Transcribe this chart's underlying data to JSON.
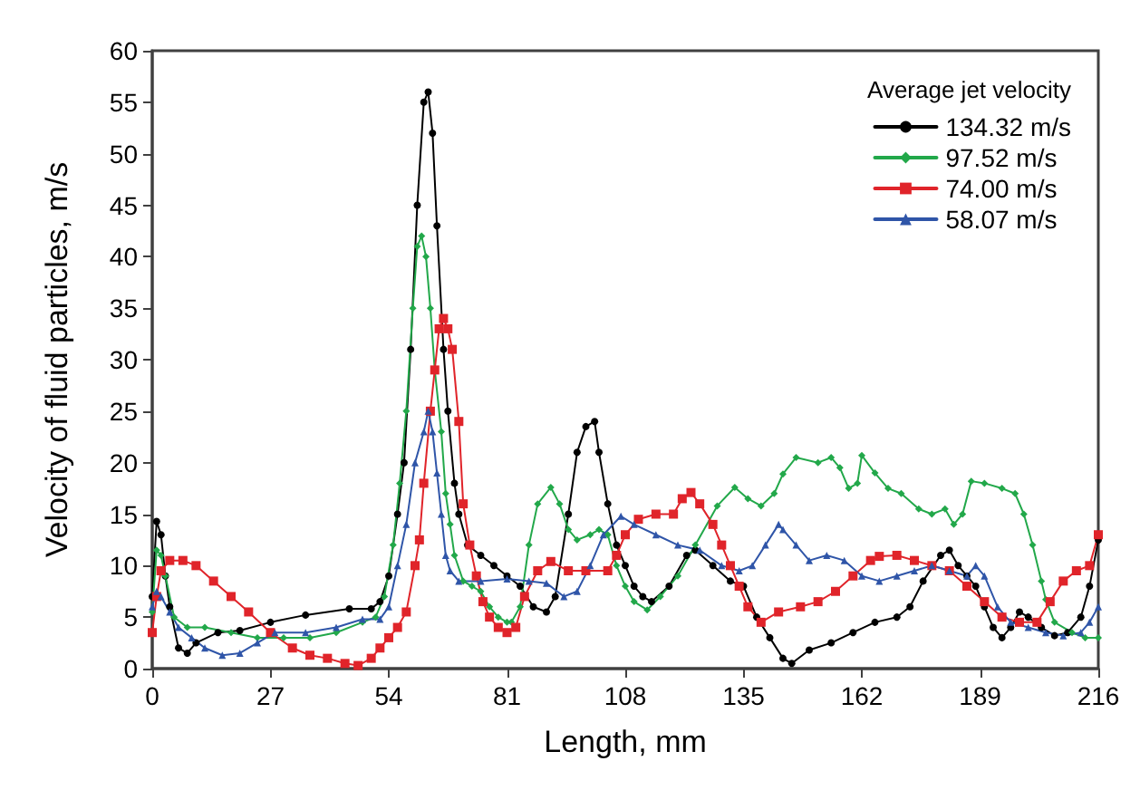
{
  "chart_data": {
    "type": "line",
    "xlabel": "Length, mm",
    "ylabel": "Velocity of fluid particles, m/s",
    "legend_title": "Average jet velocity",
    "legend": "top right",
    "grid": false,
    "xlim": [
      0,
      216
    ],
    "xticks": [
      0,
      27,
      54,
      81,
      108,
      135,
      162,
      189,
      216
    ],
    "ylim": [
      0,
      60
    ],
    "yticks": [
      0,
      5,
      10,
      15,
      20,
      25,
      30,
      35,
      40,
      45,
      50,
      55,
      60
    ],
    "series": [
      {
        "name": "134.32 m/s",
        "color": "#000000",
        "marker": "circle",
        "x": [
          0,
          1,
          2,
          3,
          4,
          6,
          8,
          10,
          15,
          20,
          27,
          35,
          45,
          50,
          52,
          54,
          56,
          57.5,
          59,
          60.5,
          62,
          63,
          64,
          65,
          66.5,
          67.5,
          69,
          70,
          72,
          75,
          78,
          81,
          84,
          87,
          90,
          92,
          95,
          97,
          99,
          101,
          102,
          104,
          106,
          108,
          110,
          112,
          114,
          118,
          122,
          124,
          128,
          132,
          135,
          138,
          141,
          144,
          146,
          150,
          155,
          160,
          165,
          170,
          173,
          176,
          180,
          182,
          184,
          186,
          188,
          190,
          192,
          194,
          196,
          198,
          200,
          203,
          206,
          209,
          212,
          214,
          216
        ],
        "values": [
          7,
          14.3,
          13,
          9,
          6,
          2,
          1.5,
          2.5,
          3.5,
          3.7,
          4.5,
          5.2,
          5.8,
          5.8,
          6.5,
          9,
          15,
          20,
          31,
          45,
          55,
          56,
          52,
          43,
          31,
          25,
          18,
          15,
          12,
          11,
          10,
          9,
          8,
          6,
          5.5,
          7,
          15,
          21,
          23.5,
          24,
          21,
          16,
          12,
          10,
          8,
          7,
          6.5,
          8,
          11,
          11.5,
          10,
          8.5,
          8,
          5,
          3,
          1,
          0.5,
          1.8,
          2.5,
          3.5,
          4.5,
          5,
          6,
          8.5,
          11,
          11.5,
          10,
          9,
          8,
          6,
          4,
          3,
          4,
          5.5,
          5,
          4,
          3.2,
          3.5,
          5,
          8,
          12.5
        ]
      },
      {
        "name": "97.52 m/s",
        "color": "#22a84a",
        "marker": "diamond",
        "x": [
          0,
          1,
          2,
          3,
          5,
          8,
          12,
          18,
          24,
          30,
          36,
          42,
          48,
          51,
          53,
          55,
          56.5,
          58,
          59.5,
          60.5,
          61.5,
          62.5,
          63.5,
          64.5,
          66,
          67,
          68,
          69,
          71,
          73,
          75,
          77,
          79,
          81,
          82,
          84,
          86,
          88,
          91,
          93,
          95,
          97,
          100,
          102,
          104,
          106,
          108,
          110,
          113,
          116,
          120,
          124,
          129,
          133,
          136,
          139,
          142,
          144,
          147,
          152,
          155,
          157,
          159,
          161,
          162,
          165,
          168,
          171,
          175,
          178,
          181,
          183,
          185,
          187,
          190,
          194,
          197,
          199,
          201,
          203,
          204,
          206,
          210,
          213,
          216
        ],
        "values": [
          5.5,
          11.5,
          11,
          9,
          5,
          4,
          4,
          3.5,
          3,
          3,
          3,
          3.5,
          4.5,
          5,
          7,
          12,
          18,
          25,
          35,
          41,
          42,
          40,
          35,
          29,
          23,
          17,
          14,
          11,
          8.5,
          8,
          7.5,
          6,
          5,
          4.5,
          4.5,
          6,
          12,
          16,
          17.6,
          16,
          13.5,
          12.5,
          13,
          13.5,
          13,
          10,
          8,
          6.5,
          5.7,
          7,
          9,
          12,
          15.8,
          17.6,
          16.5,
          15.8,
          17,
          18.9,
          20.5,
          20,
          20.5,
          19.5,
          17.5,
          18,
          20.7,
          19,
          17.5,
          17,
          15.5,
          15,
          15.5,
          14,
          15,
          18.2,
          18,
          17.5,
          17,
          15,
          12,
          8.5,
          6.7,
          4.5,
          3.5,
          3,
          3
        ]
      },
      {
        "name": "74.00 m/s",
        "color": "#e0242a",
        "marker": "square",
        "x": [
          0,
          1,
          2,
          4,
          7,
          10,
          14,
          18,
          22,
          27,
          32,
          36,
          40,
          44,
          47,
          50,
          52,
          54,
          56,
          58,
          60,
          61,
          62,
          63.5,
          64.5,
          65.5,
          66.5,
          67.5,
          68.5,
          70,
          71,
          72.5,
          74,
          75.5,
          77,
          79,
          81,
          83,
          85,
          88,
          91,
          95,
          99,
          104,
          106,
          108,
          111,
          115,
          119,
          121,
          123,
          125,
          128,
          130,
          132,
          134,
          136,
          139,
          143,
          148,
          152,
          156,
          160,
          164,
          166,
          170,
          174,
          178,
          182,
          186,
          190,
          194,
          198,
          202,
          205,
          208,
          211,
          214,
          216
        ],
        "values": [
          3.5,
          7,
          9.5,
          10.5,
          10.5,
          10,
          8.5,
          7,
          5.5,
          3.5,
          2,
          1.3,
          1,
          0.5,
          0.3,
          1,
          2,
          3,
          4,
          5.5,
          10,
          12.5,
          18,
          25,
          29,
          33,
          34,
          33,
          31,
          24,
          16,
          12,
          9,
          6.5,
          5,
          4,
          3.5,
          4,
          7,
          9.5,
          10.4,
          9.5,
          9.5,
          9.5,
          11,
          13,
          14.5,
          15,
          15,
          16.5,
          17.1,
          16,
          14,
          12,
          10,
          8,
          6,
          4.5,
          5.5,
          6,
          6.5,
          7.5,
          9,
          10.5,
          10.9,
          11,
          10.5,
          10,
          9.5,
          8,
          6.5,
          5,
          4.5,
          4.5,
          6.5,
          8.5,
          9.5,
          10,
          13
        ]
      },
      {
        "name": "58.07 m/s",
        "color": "#2f55a8",
        "marker": "triangle",
        "x": [
          0,
          1,
          2,
          4,
          6,
          9,
          12,
          16,
          20,
          24,
          28,
          35,
          42,
          48,
          52,
          54,
          56,
          58,
          60,
          62,
          63,
          64,
          65,
          66,
          67,
          68,
          70,
          75,
          81,
          86,
          90,
          94,
          97,
          100,
          103,
          107,
          110,
          115,
          120,
          125,
          130,
          134,
          137,
          140,
          143,
          144,
          147,
          150,
          154,
          158,
          162,
          166,
          170,
          174,
          178,
          182,
          186,
          188,
          190,
          193,
          196,
          200,
          204,
          208,
          212,
          214,
          216
        ],
        "values": [
          6,
          7.5,
          7,
          5.5,
          4,
          3,
          2,
          1.3,
          1.5,
          2.5,
          3.5,
          3.5,
          4,
          4.8,
          4.8,
          6,
          10,
          14,
          20,
          23,
          25,
          23,
          19,
          15,
          11,
          9.5,
          8.5,
          8.5,
          8.7,
          8.5,
          8.3,
          7,
          7.5,
          10,
          13,
          14.8,
          14,
          13,
          12,
          11.5,
          10,
          9.5,
          10,
          12,
          14,
          13.5,
          12,
          10.5,
          11,
          10.5,
          9,
          8.5,
          9,
          9.5,
          10,
          9.5,
          9,
          10,
          9,
          6,
          4.5,
          4,
          3.5,
          3.2,
          3.5,
          4.5,
          6
        ]
      }
    ]
  }
}
